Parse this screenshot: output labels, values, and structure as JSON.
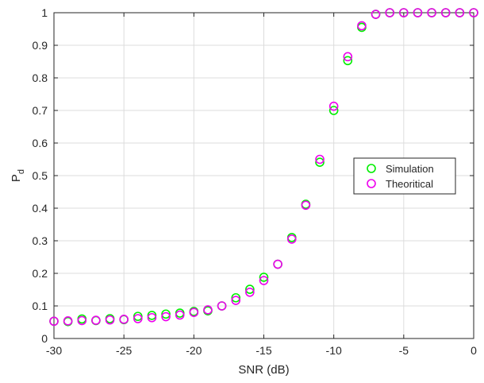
{
  "chart_data": {
    "type": "scatter",
    "title": "",
    "xlabel": "SNR (dB)",
    "ylabel_main": "P",
    "ylabel_sub": "d",
    "xlim": [
      -30,
      0
    ],
    "ylim": [
      0,
      1
    ],
    "x_ticks": [
      -30,
      -25,
      -20,
      -15,
      -10,
      -5,
      0
    ],
    "y_ticks": [
      0,
      0.1,
      0.2,
      0.3,
      0.4,
      0.5,
      0.6,
      0.7,
      0.8,
      0.9,
      1
    ],
    "grid": true,
    "legend_position": "center-right",
    "series": [
      {
        "name": "Simulation",
        "color": "#00ee00",
        "marker": "circle",
        "x": [
          -30,
          -29,
          -28,
          -27,
          -26,
          -25,
          -24,
          -23,
          -22,
          -21,
          -20,
          -19,
          -18,
          -17,
          -16,
          -15,
          -14,
          -13,
          -12,
          -11,
          -10,
          -9,
          -8,
          -7,
          -6,
          -5,
          -4,
          -3,
          -2,
          -1,
          0
        ],
        "y": [
          0.053,
          0.052,
          0.06,
          0.055,
          0.061,
          0.058,
          0.068,
          0.071,
          0.075,
          0.078,
          0.083,
          0.085,
          0.1,
          0.125,
          0.151,
          0.188,
          0.228,
          0.31,
          0.412,
          0.541,
          0.7,
          0.853,
          0.955,
          0.995,
          1.0,
          1.0,
          1.0,
          1.0,
          1.0,
          1.0,
          1.0
        ]
      },
      {
        "name": "Theoritical",
        "color": "#ee00ee",
        "marker": "circle",
        "x": [
          -30,
          -29,
          -28,
          -27,
          -26,
          -25,
          -24,
          -23,
          -22,
          -21,
          -20,
          -19,
          -18,
          -17,
          -16,
          -15,
          -14,
          -13,
          -12,
          -11,
          -10,
          -9,
          -8,
          -7,
          -6,
          -5,
          -4,
          -3,
          -2,
          -1,
          0
        ],
        "y": [
          0.053,
          0.054,
          0.055,
          0.056,
          0.057,
          0.059,
          0.061,
          0.064,
          0.067,
          0.072,
          0.08,
          0.088,
          0.1,
          0.117,
          0.142,
          0.178,
          0.228,
          0.305,
          0.409,
          0.55,
          0.713,
          0.865,
          0.96,
          0.995,
          1.0,
          1.0,
          1.0,
          1.0,
          1.0,
          1.0,
          1.0
        ]
      }
    ]
  }
}
